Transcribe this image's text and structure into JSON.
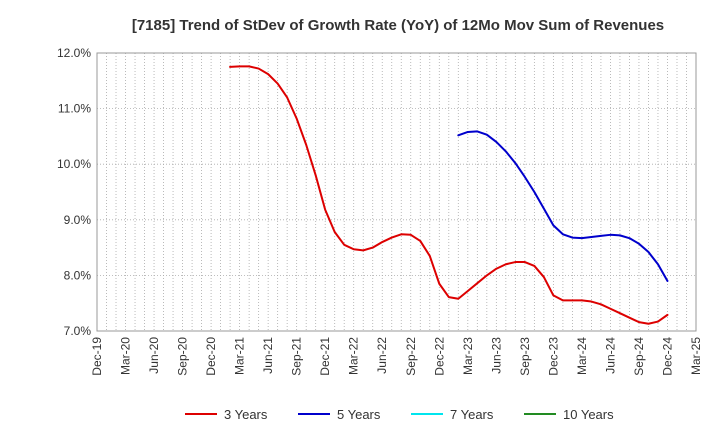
{
  "chart_data": {
    "type": "line",
    "title": "[7185]  Trend of StDev of Growth Rate (YoY) of 12Mo Mov Sum of Revenues",
    "xlabel": "",
    "ylabel": "",
    "grid": true,
    "legend_position": "bottom",
    "x_ticks": [
      "Dec-19",
      "Mar-20",
      "Jun-20",
      "Sep-20",
      "Dec-20",
      "Mar-21",
      "Jun-21",
      "Sep-21",
      "Dec-21",
      "Mar-22",
      "Jun-22",
      "Sep-22",
      "Dec-22",
      "Mar-23",
      "Jun-23",
      "Sep-23",
      "Dec-23",
      "Mar-24",
      "Jun-24",
      "Sep-24",
      "Dec-24",
      "Mar-25"
    ],
    "y_ticks": [
      "7.0%",
      "8.0%",
      "9.0%",
      "10.0%",
      "11.0%",
      "12.0%"
    ],
    "y_tick_values": [
      7.0,
      8.0,
      9.0,
      10.0,
      11.0,
      12.0
    ],
    "ylim": [
      7.0,
      12.0
    ],
    "x_months_range": [
      0,
      63
    ],
    "series": [
      {
        "name": "3 Years",
        "color": "#dd0000",
        "points": [
          [
            14,
            11.75
          ],
          [
            15,
            11.76
          ],
          [
            16,
            11.76
          ],
          [
            17,
            11.72
          ],
          [
            18,
            11.62
          ],
          [
            19,
            11.45
          ],
          [
            20,
            11.2
          ],
          [
            21,
            10.82
          ],
          [
            22,
            10.35
          ],
          [
            23,
            9.8
          ],
          [
            24,
            9.18
          ],
          [
            25,
            8.78
          ],
          [
            26,
            8.55
          ],
          [
            27,
            8.47
          ],
          [
            28,
            8.45
          ],
          [
            29,
            8.5
          ],
          [
            30,
            8.6
          ],
          [
            31,
            8.68
          ],
          [
            32,
            8.74
          ],
          [
            33,
            8.73
          ],
          [
            34,
            8.62
          ],
          [
            35,
            8.35
          ],
          [
            36,
            7.85
          ],
          [
            37,
            7.61
          ],
          [
            38,
            7.58
          ],
          [
            39,
            7.72
          ],
          [
            40,
            7.86
          ],
          [
            41,
            8.0
          ],
          [
            42,
            8.12
          ],
          [
            43,
            8.2
          ],
          [
            44,
            8.24
          ],
          [
            45,
            8.24
          ],
          [
            46,
            8.17
          ],
          [
            47,
            7.97
          ],
          [
            48,
            7.64
          ],
          [
            49,
            7.55
          ],
          [
            50,
            7.55
          ],
          [
            51,
            7.55
          ],
          [
            52,
            7.53
          ],
          [
            53,
            7.48
          ],
          [
            54,
            7.4
          ],
          [
            55,
            7.32
          ],
          [
            56,
            7.24
          ],
          [
            57,
            7.16
          ],
          [
            58,
            7.13
          ],
          [
            59,
            7.17
          ],
          [
            60,
            7.29
          ]
        ]
      },
      {
        "name": "5 Years",
        "color": "#0000cc",
        "points": [
          [
            38,
            10.52
          ],
          [
            39,
            10.58
          ],
          [
            40,
            10.59
          ],
          [
            41,
            10.53
          ],
          [
            42,
            10.4
          ],
          [
            43,
            10.23
          ],
          [
            44,
            10.02
          ],
          [
            45,
            9.77
          ],
          [
            46,
            9.5
          ],
          [
            47,
            9.2
          ],
          [
            48,
            8.9
          ],
          [
            49,
            8.74
          ],
          [
            50,
            8.68
          ],
          [
            51,
            8.67
          ],
          [
            52,
            8.69
          ],
          [
            53,
            8.71
          ],
          [
            54,
            8.73
          ],
          [
            55,
            8.72
          ],
          [
            56,
            8.67
          ],
          [
            57,
            8.57
          ],
          [
            58,
            8.42
          ],
          [
            59,
            8.2
          ],
          [
            60,
            7.9
          ]
        ]
      },
      {
        "name": "7 Years",
        "color": "#00e5ee",
        "points": []
      },
      {
        "name": "10 Years",
        "color": "#228b22",
        "points": []
      }
    ]
  }
}
